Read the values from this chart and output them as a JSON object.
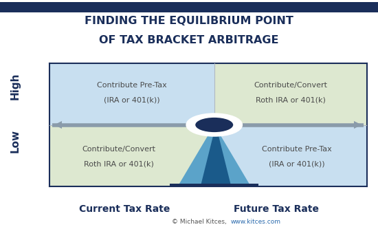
{
  "title_line1": "FINDING THE EQUILIBRIUM POINT",
  "title_line2": "OF TAX BRACKET ARBITRAGE",
  "title_color": "#1a2e5a",
  "title_fontsize": 11.5,
  "bg_color": "#ffffff",
  "top_left_color": "#c8dff0",
  "top_right_color": "#dde8d0",
  "bottom_left_color": "#dde8d0",
  "bottom_right_color": "#c8dff0",
  "border_color": "#1a2e5a",
  "divider_color": "#b0b8c0",
  "arrow_color": "#8a9baa",
  "circle_outer": "#ffffff",
  "circle_inner": "#1a2e5a",
  "triangle_light": "#5ba3c9",
  "triangle_dark": "#1a5a8a",
  "base_color": "#1a2e5a",
  "text_color": "#4a4a4a",
  "ylabel_high": "High",
  "ylabel_low": "Low",
  "xlabel_left": "Current Tax Rate",
  "xlabel_right": "Future Tax Rate",
  "top_left_line1": "Contribute Pre-Tax",
  "top_left_line2": "(IRA or 401(k))",
  "top_right_line1": "Contribute/Convert",
  "top_right_line2": "Roth IRA or 401(k)",
  "bottom_left_line1": "Contribute/Convert",
  "bottom_left_line2": "Roth IRA or 401(k)",
  "bottom_right_line1": "Contribute Pre-Tax",
  "bottom_right_line2": "(IRA or 401(k))",
  "copyright_text": "© Michael Kitces,",
  "website_text": "www.kitces.com",
  "website_color": "#2a6aad",
  "top_bar_color": "#1a2e5a"
}
